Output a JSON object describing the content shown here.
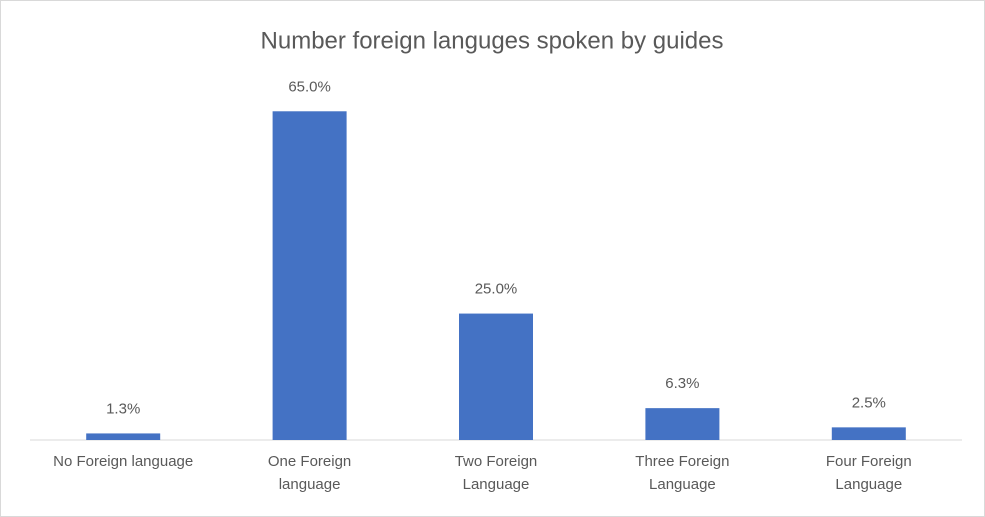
{
  "chart_data": {
    "type": "bar",
    "title": "Number foreign languges spoken by guides",
    "categories": [
      "No Foreign language",
      "One Foreign\nlanguage",
      "Two Foreign\nLanguage",
      "Three Foreign\nLanguage",
      "Four Foreign\nLanguage"
    ],
    "values": [
      1.3,
      65,
      25,
      6.3,
      2.5
    ],
    "value_labels": [
      "1.3%",
      "65.0%",
      "25.0%",
      "6.3%",
      "2.5%"
    ],
    "color": "#4472c4",
    "ylim": [
      0,
      70
    ]
  }
}
